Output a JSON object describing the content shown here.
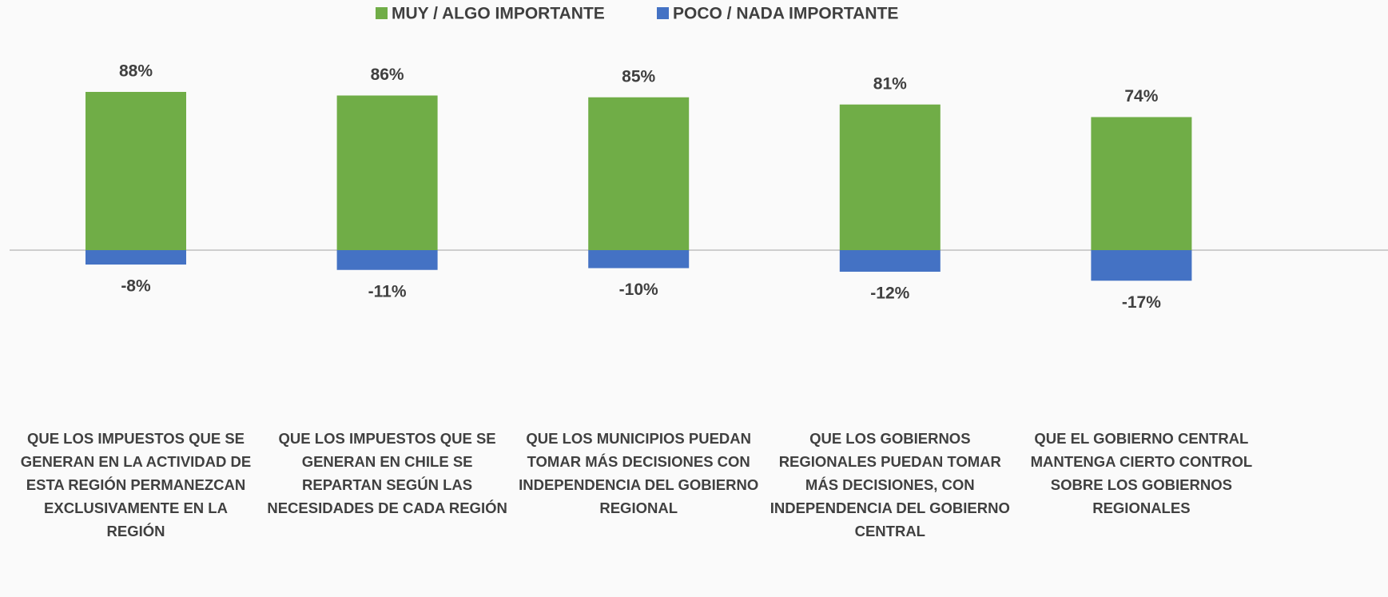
{
  "chart_data": {
    "type": "bar",
    "legend": "top",
    "categories": [
      "QUE LOS IMPUESTOS QUE SE GENERAN EN LA ACTIVIDAD DE ESTA REGIÓN PERMANEZCAN EXCLUSIVAMENTE EN LA REGIÓN",
      "QUE LOS IMPUESTOS QUE SE GENERAN EN CHILE SE REPARTAN SEGÚN LAS NECESIDADES DE CADA REGIÓN",
      "QUE LOS MUNICIPIOS PUEDAN TOMAR MÁS DECISIONES CON INDEPENDENCIA DEL GOBIERNO REGIONAL",
      "QUE LOS GOBIERNOS REGIONALES PUEDAN TOMAR MÁS DECISIONES, CON INDEPENDENCIA DEL GOBIERNO CENTRAL",
      "QUE EL GOBIERNO CENTRAL MANTENGA CIERTO CONTROL SOBRE LOS GOBIERNOS REGIONALES"
    ],
    "series": [
      {
        "name": "MUY / ALGO IMPORTANTE",
        "color": "#70ad47",
        "values": [
          88,
          86,
          85,
          81,
          74
        ],
        "value_labels": [
          "88%",
          "86%",
          "85%",
          "81%",
          "74%"
        ]
      },
      {
        "name": "POCO / NADA IMPORTANTE",
        "color": "#4472c4",
        "values": [
          -8,
          -11,
          -10,
          -12,
          -17
        ],
        "value_labels": [
          "-8%",
          "-11%",
          "-10%",
          "-12%",
          "-17%"
        ]
      }
    ]
  }
}
